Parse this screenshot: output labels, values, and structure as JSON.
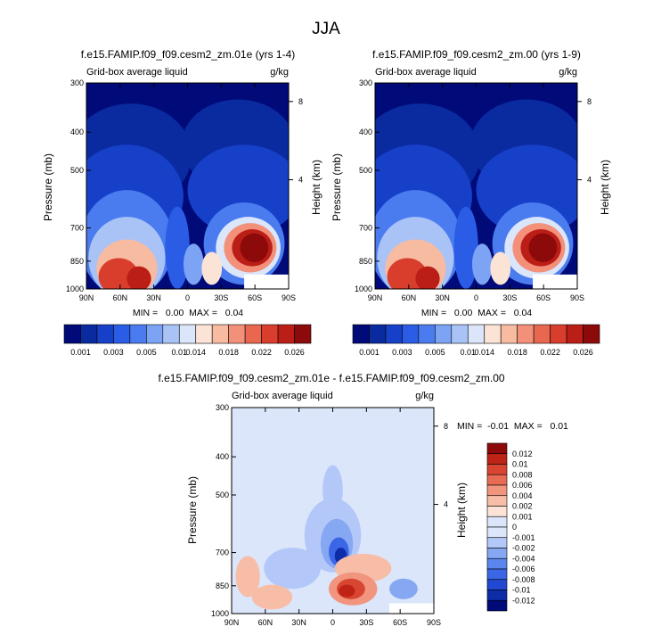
{
  "title": "JJA",
  "colors": {
    "sequential": [
      "#000a78",
      "#0a2aa0",
      "#1740c8",
      "#2a5ce6",
      "#4a7cf0",
      "#7ca3f4",
      "#a9c3f7",
      "#dbe6fb",
      "#fbe3d6",
      "#f7bba2",
      "#f2907a",
      "#e9674f",
      "#d93d2c",
      "#bb1e16",
      "#8c0a0a"
    ],
    "diverging": [
      "#000a78",
      "#0d2ca8",
      "#2148d0",
      "#3b67e6",
      "#5b86ee",
      "#86a8f3",
      "#b3c8f8",
      "#dbe6fb",
      "#fbe3d6",
      "#f7bda6",
      "#f1957f",
      "#e86c54",
      "#d84531",
      "#bd2416",
      "#8c0a0a"
    ]
  },
  "chart_data": [
    {
      "type": "heatmap",
      "title": "f.e15.FAMIP.f09_f09.cesm2_zm.01e (yrs 1-4)",
      "subtitle_left": "Grid-box average liquid",
      "subtitle_right": "g/kg",
      "xlabel": "",
      "ylabel": "Pressure (mb)",
      "ylabel_right": "Height (km)",
      "x_ticks": [
        "90N",
        "60N",
        "30N",
        "0",
        "30S",
        "60S",
        "90S"
      ],
      "y_ticks": [
        "300",
        "400",
        "500",
        "700",
        "850",
        "1000"
      ],
      "right_ticks": [
        "8",
        "4"
      ],
      "stats": "MIN =   0.00  MAX =   0.04",
      "colorbar_labels": [
        "0.001",
        "0.003",
        "0.005",
        "0.01",
        "0.014",
        "0.018",
        "0.022",
        "0.026"
      ]
    },
    {
      "type": "heatmap",
      "title": "f.e15.FAMIP.f09_f09.cesm2_zm.00 (yrs 1-9)",
      "subtitle_left": "Grid-box average liquid",
      "subtitle_right": "g/kg",
      "xlabel": "",
      "ylabel": "Pressure (mb)",
      "ylabel_right": "Height (km)",
      "x_ticks": [
        "90N",
        "60N",
        "30N",
        "0",
        "30S",
        "60S",
        "90S"
      ],
      "y_ticks": [
        "300",
        "400",
        "500",
        "700",
        "850",
        "1000"
      ],
      "right_ticks": [
        "8",
        "4"
      ],
      "stats": "MIN =   0.00  MAX =   0.04",
      "colorbar_labels": [
        "0.001",
        "0.003",
        "0.005",
        "0.01",
        "0.014",
        "0.018",
        "0.022",
        "0.026"
      ]
    },
    {
      "type": "heatmap",
      "title": "f.e15.FAMIP.f09_f09.cesm2_zm.01e - f.e15.FAMIP.f09_f09.cesm2_zm.00",
      "subtitle_left": "Grid-box average liquid",
      "subtitle_right": "g/kg",
      "xlabel": "",
      "ylabel": "Pressure (mb)",
      "ylabel_right": "Height (km)",
      "x_ticks": [
        "90N",
        "60N",
        "30N",
        "0",
        "30S",
        "60S",
        "90S"
      ],
      "y_ticks": [
        "300",
        "400",
        "500",
        "700",
        "850",
        "1000"
      ],
      "right_ticks": [
        "8",
        "4"
      ],
      "stats": "MIN =  -0.01  MAX =   0.01",
      "colorbar_labels": [
        "0.012",
        "0.01",
        "0.008",
        "0.006",
        "0.004",
        "0.002",
        "0.001",
        "0",
        "-0.001",
        "-0.002",
        "-0.004",
        "-0.006",
        "-0.008",
        "-0.01",
        "-0.012"
      ]
    }
  ]
}
